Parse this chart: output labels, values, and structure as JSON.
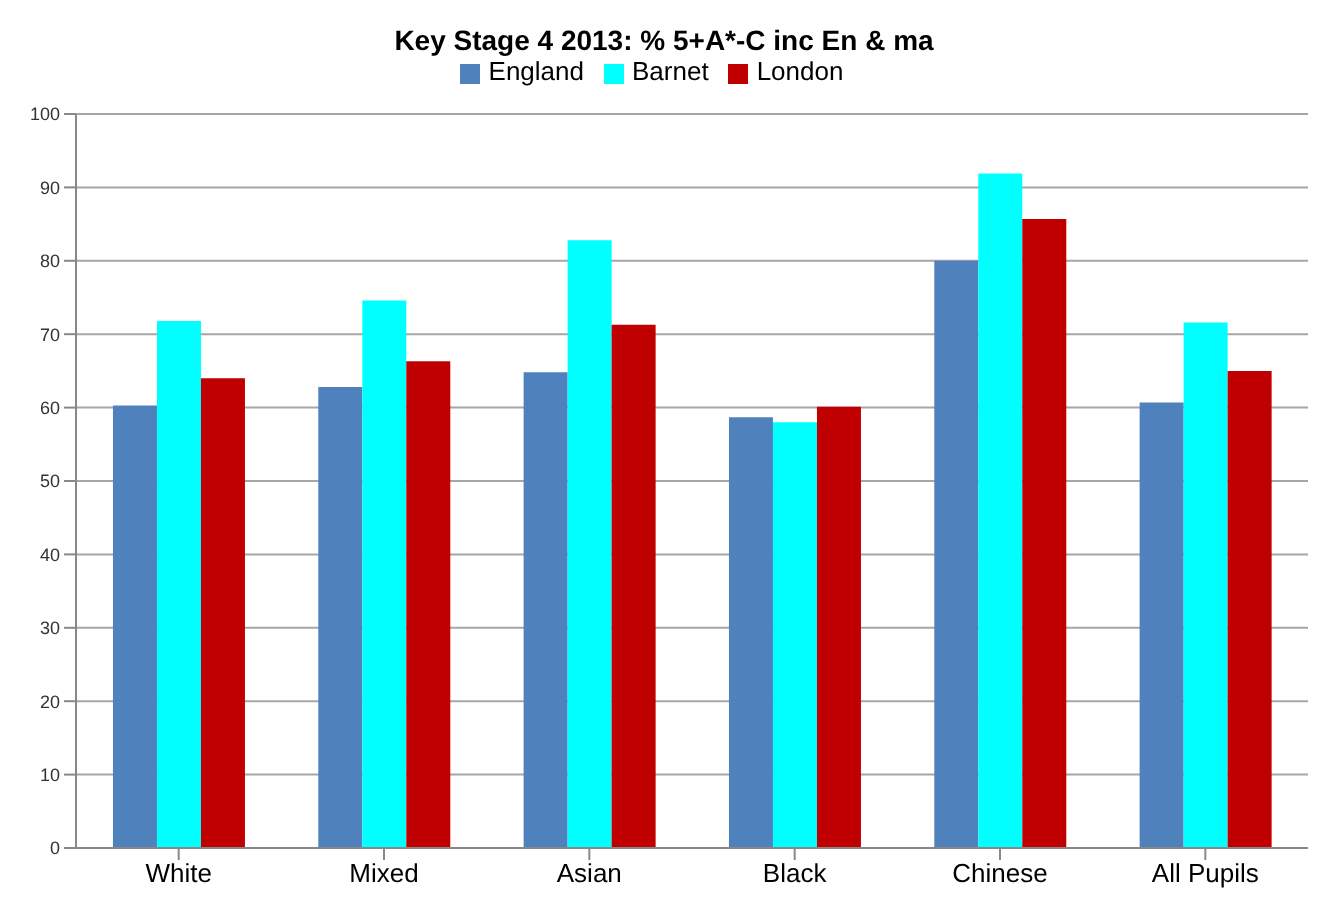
{
  "chart_data": {
    "type": "bar",
    "title": "Key Stage 4 2013: % 5+A*-C inc En & ma",
    "categories": [
      "White",
      "Mixed",
      "Asian",
      "Black",
      "Chinese",
      "All Pupils"
    ],
    "series": [
      {
        "name": "England",
        "color": "#4f81bd",
        "values": [
          60.3,
          62.8,
          64.8,
          58.7,
          80,
          60.7
        ]
      },
      {
        "name": "Barnet",
        "color": "#00ffff",
        "values": [
          71.8,
          74.6,
          82.8,
          58,
          91.9,
          71.6
        ]
      },
      {
        "name": "London",
        "color": "#c00000",
        "values": [
          64,
          66.3,
          71.3,
          60.1,
          85.7,
          65
        ]
      }
    ],
    "ylim": [
      0,
      100
    ],
    "yticks": [
      0,
      10,
      20,
      30,
      40,
      50,
      60,
      70,
      80,
      90,
      100
    ],
    "grid": "y",
    "legend": "top"
  }
}
